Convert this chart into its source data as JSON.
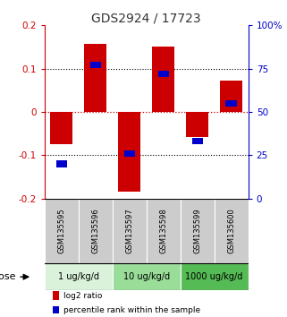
{
  "title": "GDS2924 / 17723",
  "samples": [
    "GSM135595",
    "GSM135596",
    "GSM135597",
    "GSM135598",
    "GSM135599",
    "GSM135600"
  ],
  "log2_ratios": [
    -0.075,
    0.158,
    -0.185,
    0.15,
    -0.058,
    0.072
  ],
  "percentile_ranks": [
    20,
    77,
    26,
    72,
    33,
    55
  ],
  "bar_width": 0.65,
  "ylim_left": [
    -0.2,
    0.2
  ],
  "ylim_right": [
    0,
    100
  ],
  "yticks_left": [
    -0.2,
    -0.1,
    0.0,
    0.1,
    0.2
  ],
  "ytick_labels_left": [
    "-0.2",
    "-0.1",
    "0",
    "0.1",
    "0.2"
  ],
  "yticks_right": [
    0,
    25,
    50,
    75,
    100
  ],
  "ytick_labels_right": [
    "0",
    "25",
    "50",
    "75",
    "100%"
  ],
  "red_color": "#cc0000",
  "blue_color": "#0000cc",
  "dose_groups": [
    {
      "label": "1 ug/kg/d",
      "samples": [
        0,
        1
      ],
      "color": "#d9f2d9"
    },
    {
      "label": "10 ug/kg/d",
      "samples": [
        2,
        3
      ],
      "color": "#99dd99"
    },
    {
      "label": "1000 ug/kg/d",
      "samples": [
        4,
        5
      ],
      "color": "#55bb55"
    }
  ],
  "legend_items": [
    {
      "color": "#cc0000",
      "label": "log2 ratio"
    },
    {
      "color": "#0000cc",
      "label": "percentile rank within the sample"
    }
  ],
  "dose_label": "dose",
  "title_color": "#333333",
  "gray_bg": "#cccccc",
  "white": "#ffffff",
  "black": "#000000"
}
